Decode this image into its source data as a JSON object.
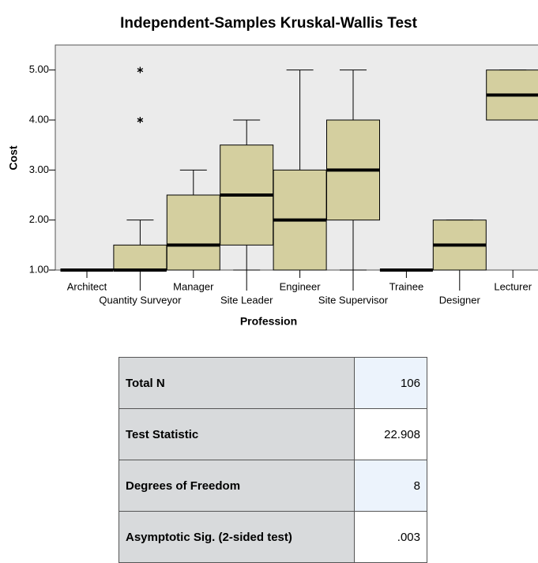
{
  "chart_data": {
    "type": "box",
    "title": "Independent-Samples Kruskal-Wallis Test",
    "x_label": "Profession",
    "y_label": "Cost",
    "categories": [
      "Architect",
      "Quantity Surveyor",
      "Manager",
      "Site Leader",
      "Engineer",
      "Site Supervisor",
      "Trainee",
      "Designer",
      "Lecturer"
    ],
    "boxes": [
      {
        "min": 1,
        "q1": 1,
        "median": 1,
        "q3": 1,
        "max": 1,
        "outliers": []
      },
      {
        "min": 1,
        "q1": 1,
        "median": 1,
        "q3": 1.5,
        "max": 2,
        "outliers": [
          4,
          5
        ]
      },
      {
        "min": 1,
        "q1": 1,
        "median": 1.5,
        "q3": 2.5,
        "max": 3,
        "outliers": []
      },
      {
        "min": 1,
        "q1": 1.5,
        "median": 2.5,
        "q3": 3.5,
        "max": 4,
        "outliers": []
      },
      {
        "min": 1,
        "q1": 1,
        "median": 2,
        "q3": 3,
        "max": 5,
        "outliers": []
      },
      {
        "min": 1,
        "q1": 2,
        "median": 3,
        "q3": 4,
        "max": 5,
        "outliers": []
      },
      {
        "min": 1,
        "q1": 1,
        "median": 1,
        "q3": 1,
        "max": 1,
        "outliers": []
      },
      {
        "min": 1,
        "q1": 1,
        "median": 1.5,
        "q3": 2,
        "max": 2,
        "outliers": []
      },
      {
        "min": 4,
        "q1": 4,
        "median": 4.5,
        "q3": 5,
        "max": 5,
        "outliers": []
      }
    ],
    "color": "#d4cf9f",
    "ylim": [
      1,
      5.5
    ],
    "yticks": [
      {
        "value": 1,
        "label": "1.00"
      },
      {
        "value": 2,
        "label": "2.00"
      },
      {
        "value": 3,
        "label": "3.00"
      },
      {
        "value": 4,
        "label": "4.00"
      },
      {
        "value": 5,
        "label": "5.00"
      }
    ]
  },
  "table": {
    "rows": [
      [
        "Total N",
        "106"
      ],
      [
        "Test Statistic",
        "22.908"
      ],
      [
        "Degrees of Freedom",
        "8"
      ],
      [
        "Asymptotic Sig. (2-sided test)",
        ".003"
      ]
    ]
  }
}
